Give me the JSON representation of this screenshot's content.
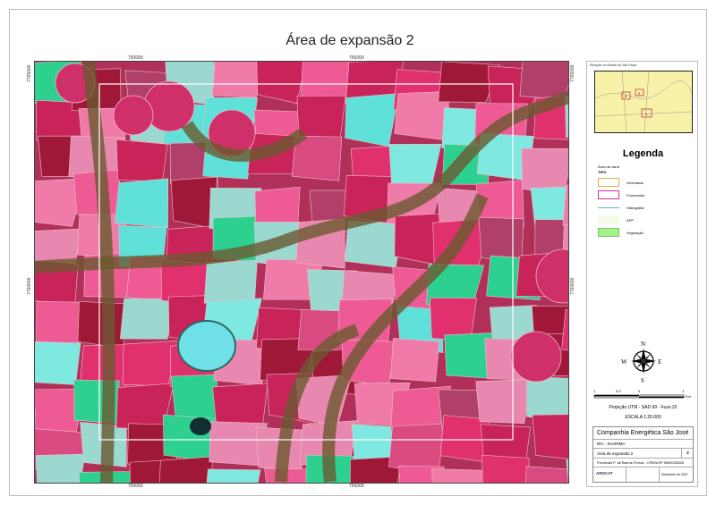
{
  "title": "Área de expansão 2",
  "map": {
    "top_coords": [
      "750000",
      "755000"
    ],
    "bottom_coords": [
      "750000",
      "755000"
    ],
    "left_coords": [
      "7765000",
      "7760000"
    ],
    "right_coords": [
      "7765000",
      "7760000"
    ]
  },
  "inset": {
    "label": "Situação no Estado de São Paulo",
    "areas": [
      "1",
      "2",
      "3"
    ],
    "fill": "#f7f2a8"
  },
  "legend": {
    "title": "Legenda",
    "group": "Área de cana",
    "tipo": "TIPO",
    "items": [
      {
        "label": "Arrendada",
        "icon": "orange-outline-box",
        "color": "#e8b04a"
      },
      {
        "label": "Fornecedor",
        "icon": "magenta-outline-box",
        "color": "#d0309a"
      },
      {
        "label": "Hidrografia",
        "icon": "blue-line",
        "color": "#6aa6d8"
      },
      {
        "label": "APP",
        "icon": "light-box",
        "color": "#f2fbe8"
      },
      {
        "label": "Vegetação",
        "icon": "green-box",
        "color": "#a6f08a"
      }
    ]
  },
  "north": {
    "n": "N",
    "s": "S",
    "e": "E",
    "w": "W"
  },
  "scale": {
    "ticks": [
      "1",
      "0.5",
      "0",
      "1"
    ],
    "unit": "Km",
    "projection": "Projeção UTM - SAD 69 - Fuso 22",
    "ratio": "ESCALA 1:20.000"
  },
  "titleblock": {
    "company": "Companhia Energética São José",
    "study": "RIC - EIA/RIMA",
    "sheet_title": "Área de expansão 2",
    "sheet_no": "2",
    "author": "Fernando F. de Barros Ferraz - CREA/SP 5060032835",
    "logo": "ARDCAT",
    "date": "Dezembro de 2007"
  }
}
